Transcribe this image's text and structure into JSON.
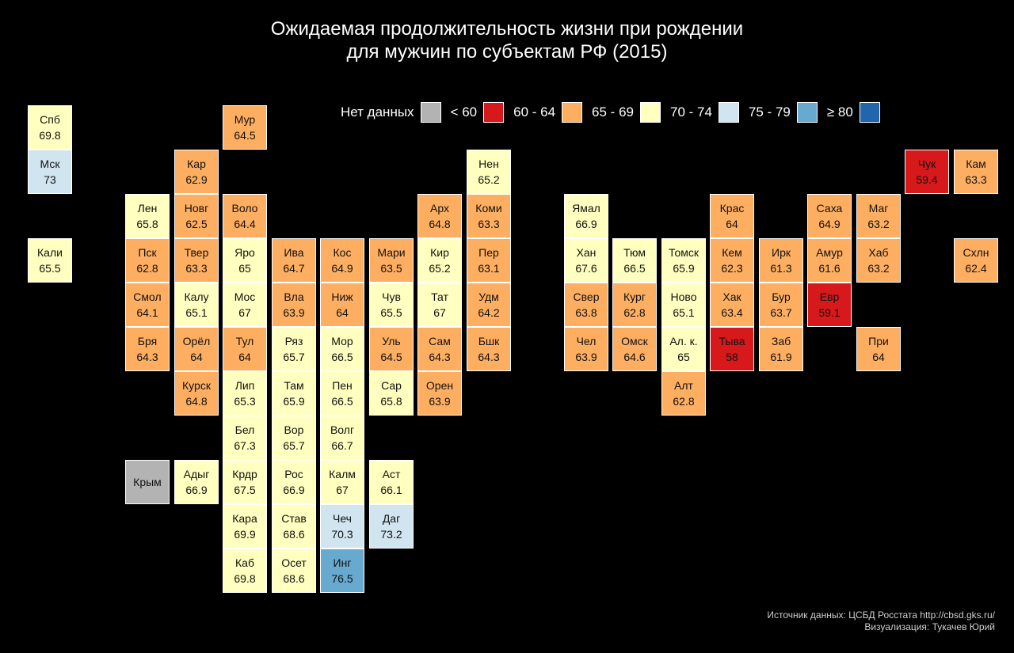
{
  "title_line1": "Ожидаемая продолжительность жизни при рождении",
  "title_line2": "для мужчин по субъектам РФ (2015)",
  "legend": [
    {
      "label": "Нет данных",
      "color": "#b3b3b3"
    },
    {
      "label": "< 60",
      "color": "#d7191c"
    },
    {
      "label": "60 - 64",
      "color": "#fdae61"
    },
    {
      "label": "65 - 69",
      "color": "#ffffbf"
    },
    {
      "label": "70 - 74",
      "color": "#d1e5f0"
    },
    {
      "label": "75 - 79",
      "color": "#67a9cf"
    },
    {
      "label": "≥ 80",
      "color": "#2166ac"
    }
  ],
  "footer_line1": "Источник данных: ЦСБД Росстата http://cbsd.gks.ru/",
  "footer_line2": "Визуализация: Тукачев Юрий",
  "regions": [
    {
      "name": "Спб",
      "value": "69.8",
      "col": 0,
      "row": 0
    },
    {
      "name": "Мур",
      "value": "64.5",
      "col": 4,
      "row": 0
    },
    {
      "name": "Мск",
      "value": "73",
      "col": 0,
      "row": 1
    },
    {
      "name": "Кар",
      "value": "62.9",
      "col": 3,
      "row": 1
    },
    {
      "name": "Нен",
      "value": "65.2",
      "col": 9,
      "row": 1
    },
    {
      "name": "Чук",
      "value": "59.4",
      "col": 18,
      "row": 1
    },
    {
      "name": "Кам",
      "value": "63.3",
      "col": 19,
      "row": 1
    },
    {
      "name": "Лен",
      "value": "65.8",
      "col": 2,
      "row": 2
    },
    {
      "name": "Новг",
      "value": "62.5",
      "col": 3,
      "row": 2
    },
    {
      "name": "Воло",
      "value": "64.4",
      "col": 4,
      "row": 2
    },
    {
      "name": "Арх",
      "value": "64.8",
      "col": 8,
      "row": 2
    },
    {
      "name": "Коми",
      "value": "63.3",
      "col": 9,
      "row": 2
    },
    {
      "name": "Ямал",
      "value": "66.9",
      "col": 11,
      "row": 2
    },
    {
      "name": "Крас",
      "value": "64",
      "col": 14,
      "row": 2
    },
    {
      "name": "Саха",
      "value": "64.9",
      "col": 16,
      "row": 2
    },
    {
      "name": "Маг",
      "value": "63.2",
      "col": 17,
      "row": 2
    },
    {
      "name": "Кали",
      "value": "65.5",
      "col": 0,
      "row": 3
    },
    {
      "name": "Пск",
      "value": "62.8",
      "col": 2,
      "row": 3
    },
    {
      "name": "Твер",
      "value": "63.3",
      "col": 3,
      "row": 3
    },
    {
      "name": "Яро",
      "value": "65",
      "col": 4,
      "row": 3
    },
    {
      "name": "Ива",
      "value": "64.7",
      "col": 5,
      "row": 3
    },
    {
      "name": "Кос",
      "value": "64.9",
      "col": 6,
      "row": 3
    },
    {
      "name": "Мари",
      "value": "63.5",
      "col": 7,
      "row": 3
    },
    {
      "name": "Кир",
      "value": "65.2",
      "col": 8,
      "row": 3
    },
    {
      "name": "Пер",
      "value": "63.1",
      "col": 9,
      "row": 3
    },
    {
      "name": "Хан",
      "value": "67.6",
      "col": 11,
      "row": 3
    },
    {
      "name": "Тюм",
      "value": "66.5",
      "col": 12,
      "row": 3
    },
    {
      "name": "Томск",
      "value": "65.9",
      "col": 13,
      "row": 3
    },
    {
      "name": "Кем",
      "value": "62.3",
      "col": 14,
      "row": 3
    },
    {
      "name": "Ирк",
      "value": "61.3",
      "col": 15,
      "row": 3
    },
    {
      "name": "Амур",
      "value": "61.6",
      "col": 16,
      "row": 3
    },
    {
      "name": "Хаб",
      "value": "63.2",
      "col": 17,
      "row": 3
    },
    {
      "name": "Схлн",
      "value": "62.4",
      "col": 19,
      "row": 3
    },
    {
      "name": "Смол",
      "value": "64.1",
      "col": 2,
      "row": 4
    },
    {
      "name": "Калу",
      "value": "65.1",
      "col": 3,
      "row": 4
    },
    {
      "name": "Мос",
      "value": "67",
      "col": 4,
      "row": 4
    },
    {
      "name": "Вла",
      "value": "63.9",
      "col": 5,
      "row": 4
    },
    {
      "name": "Ниж",
      "value": "64",
      "col": 6,
      "row": 4
    },
    {
      "name": "Чув",
      "value": "65.5",
      "col": 7,
      "row": 4
    },
    {
      "name": "Тат",
      "value": "67",
      "col": 8,
      "row": 4
    },
    {
      "name": "Удм",
      "value": "64.2",
      "col": 9,
      "row": 4
    },
    {
      "name": "Свер",
      "value": "63.8",
      "col": 11,
      "row": 4
    },
    {
      "name": "Кург",
      "value": "62.8",
      "col": 12,
      "row": 4
    },
    {
      "name": "Ново",
      "value": "65.1",
      "col": 13,
      "row": 4
    },
    {
      "name": "Хак",
      "value": "63.4",
      "col": 14,
      "row": 4
    },
    {
      "name": "Бур",
      "value": "63.7",
      "col": 15,
      "row": 4
    },
    {
      "name": "Евр",
      "value": "59.1",
      "col": 16,
      "row": 4
    },
    {
      "name": "Бря",
      "value": "64.3",
      "col": 2,
      "row": 5
    },
    {
      "name": "Орёл",
      "value": "64",
      "col": 3,
      "row": 5
    },
    {
      "name": "Тул",
      "value": "64",
      "col": 4,
      "row": 5
    },
    {
      "name": "Ряз",
      "value": "65.7",
      "col": 5,
      "row": 5
    },
    {
      "name": "Мор",
      "value": "66.5",
      "col": 6,
      "row": 5
    },
    {
      "name": "Уль",
      "value": "64.5",
      "col": 7,
      "row": 5
    },
    {
      "name": "Сам",
      "value": "64.3",
      "col": 8,
      "row": 5
    },
    {
      "name": "Бшк",
      "value": "64.3",
      "col": 9,
      "row": 5
    },
    {
      "name": "Чел",
      "value": "63.9",
      "col": 11,
      "row": 5
    },
    {
      "name": "Омск",
      "value": "64.6",
      "col": 12,
      "row": 5
    },
    {
      "name": "Ал. к.",
      "value": "65",
      "col": 13,
      "row": 5
    },
    {
      "name": "Тыва",
      "value": "58",
      "col": 14,
      "row": 5
    },
    {
      "name": "Заб",
      "value": "61.9",
      "col": 15,
      "row": 5
    },
    {
      "name": "При",
      "value": "64",
      "col": 17,
      "row": 5
    },
    {
      "name": "Курск",
      "value": "64.8",
      "col": 3,
      "row": 6
    },
    {
      "name": "Лип",
      "value": "65.3",
      "col": 4,
      "row": 6
    },
    {
      "name": "Там",
      "value": "65.9",
      "col": 5,
      "row": 6
    },
    {
      "name": "Пен",
      "value": "66.5",
      "col": 6,
      "row": 6
    },
    {
      "name": "Сар",
      "value": "65.8",
      "col": 7,
      "row": 6
    },
    {
      "name": "Орен",
      "value": "63.9",
      "col": 8,
      "row": 6
    },
    {
      "name": "Алт",
      "value": "62.8",
      "col": 13,
      "row": 6
    },
    {
      "name": "Бел",
      "value": "67.3",
      "col": 4,
      "row": 7
    },
    {
      "name": "Вор",
      "value": "65.7",
      "col": 5,
      "row": 7
    },
    {
      "name": "Волг",
      "value": "66.7",
      "col": 6,
      "row": 7
    },
    {
      "name": "Крым",
      "value": "",
      "col": 2,
      "row": 8
    },
    {
      "name": "Адыг",
      "value": "66.9",
      "col": 3,
      "row": 8
    },
    {
      "name": "Крдр",
      "value": "67.5",
      "col": 4,
      "row": 8
    },
    {
      "name": "Рос",
      "value": "66.9",
      "col": 5,
      "row": 8
    },
    {
      "name": "Калм",
      "value": "67",
      "col": 6,
      "row": 8
    },
    {
      "name": "Аст",
      "value": "66.1",
      "col": 7,
      "row": 8
    },
    {
      "name": "Кара",
      "value": "69.9",
      "col": 4,
      "row": 9
    },
    {
      "name": "Став",
      "value": "68.6",
      "col": 5,
      "row": 9
    },
    {
      "name": "Чеч",
      "value": "70.3",
      "col": 6,
      "row": 9
    },
    {
      "name": "Даг",
      "value": "73.2",
      "col": 7,
      "row": 9
    },
    {
      "name": "Каб",
      "value": "69.8",
      "col": 4,
      "row": 10
    },
    {
      "name": "Осет",
      "value": "68.6",
      "col": 5,
      "row": 10
    },
    {
      "name": "Инг",
      "value": "76.5",
      "col": 6,
      "row": 10
    }
  ]
}
